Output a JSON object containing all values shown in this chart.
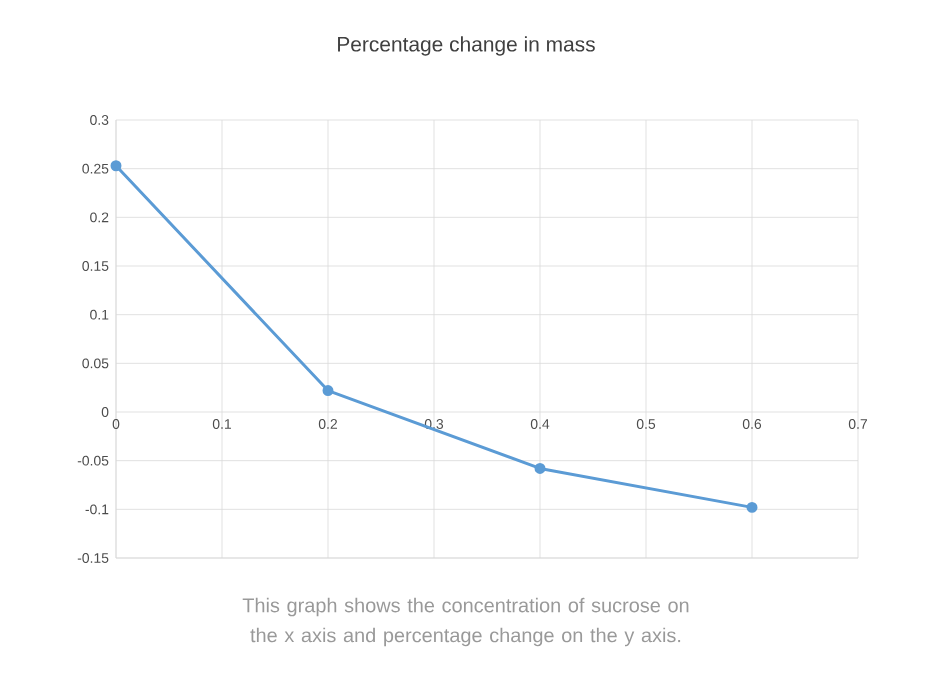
{
  "chart_data": {
    "type": "line",
    "title": "Percentage change in mass",
    "x": [
      0,
      0.2,
      0.4,
      0.6
    ],
    "series": [
      {
        "color": "#5b9bd5",
        "values": [
          0.253,
          0.022,
          -0.058,
          -0.098
        ]
      }
    ],
    "xlim": [
      0,
      0.7
    ],
    "xticks": [
      0,
      0.1,
      0.2,
      0.3,
      0.4,
      0.5,
      0.6,
      0.7
    ],
    "ylim": [
      -0.15,
      0.3
    ],
    "yticks": [
      -0.15,
      -0.1,
      -0.05,
      0,
      0.05,
      0.1,
      0.15,
      0.2,
      0.25,
      0.3
    ],
    "grid": true,
    "marker": "circle",
    "line_style": "solid",
    "annotations": [
      "This graph shows the concentration of sucrose on the x axis and percentage change on the y axis."
    ]
  }
}
